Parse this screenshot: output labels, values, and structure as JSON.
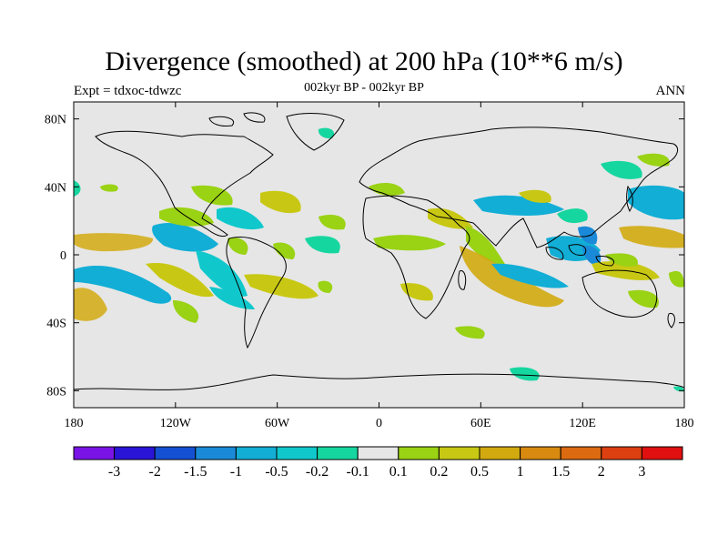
{
  "header": {
    "title": "Divergence (smoothed) at 200 hPa (10**6 m/s)",
    "experiment": "Expt = tdxoc-tdwzc",
    "subtitle": "002kyr BP - 002kyr BP",
    "season": "ANN"
  },
  "map": {
    "projection": "cylindrical-equidistant",
    "lon_range": [
      -180,
      180
    ],
    "lat_range": [
      -90,
      90
    ],
    "lat_ticks": [
      {
        "lat": 80,
        "label": "80N"
      },
      {
        "lat": 40,
        "label": "40N"
      },
      {
        "lat": 0,
        "label": "0"
      },
      {
        "lat": -40,
        "label": "40S"
      },
      {
        "lat": -80,
        "label": "80S"
      }
    ],
    "lon_ticks": [
      {
        "lon": -180,
        "label": "180"
      },
      {
        "lon": -120,
        "label": "120W"
      },
      {
        "lon": -60,
        "label": "60W"
      },
      {
        "lon": 0,
        "label": "0"
      },
      {
        "lon": 60,
        "label": "60E"
      },
      {
        "lon": 120,
        "label": "120E"
      },
      {
        "lon": 180,
        "label": "180"
      }
    ],
    "background_color": "#e6e6e6"
  },
  "colorbar": {
    "colors": [
      "#7a14e6",
      "#2a14d6",
      "#1450d2",
      "#1a8ad8",
      "#12aed6",
      "#10c8cc",
      "#16d6a0",
      "#e6e6e6",
      "#9ad214",
      "#c8c814",
      "#d2aa10",
      "#d88a10",
      "#dc6a10",
      "#dc4010",
      "#e01010"
    ],
    "labels": [
      "-3",
      "-2",
      "-1.5",
      "-1",
      "-0.5",
      "-0.2",
      "-0.1",
      "0.1",
      "0.2",
      "0.5",
      "1",
      "1.5",
      "2",
      "3"
    ]
  },
  "chart_data": {
    "type": "heatmap",
    "variable": "Divergence (smoothed) at 200 hPa",
    "units": "10**6 m/s",
    "anomaly_regions": [
      {
        "lon": -160,
        "lat": 8,
        "value": 0.5
      },
      {
        "lon": -150,
        "lat": -20,
        "value": -0.2
      },
      {
        "lon": -160,
        "lat": -28,
        "value": 0.5
      },
      {
        "lon": -120,
        "lat": 10,
        "value": -0.2
      },
      {
        "lon": -118,
        "lat": -18,
        "value": 0.2
      },
      {
        "lon": -95,
        "lat": 22,
        "value": 0.2
      },
      {
        "lon": -90,
        "lat": 8,
        "value": -0.2
      },
      {
        "lon": -60,
        "lat": 15,
        "value": 0.2
      },
      {
        "lon": -45,
        "lat": -20,
        "value": 0.2
      },
      {
        "lon": -30,
        "lat": 28,
        "value": 0.2
      },
      {
        "lon": -20,
        "lat": 8,
        "value": 0.2
      },
      {
        "lon": -15,
        "lat": -8,
        "value": -0.2
      },
      {
        "lon": 20,
        "lat": 10,
        "value": 0.2
      },
      {
        "lon": 45,
        "lat": 20,
        "value": 0.5
      },
      {
        "lon": 50,
        "lat": -15,
        "value": 0.5
      },
      {
        "lon": 60,
        "lat": 25,
        "value": -0.2
      },
      {
        "lon": 85,
        "lat": -12,
        "value": 0.5
      },
      {
        "lon": 95,
        "lat": 30,
        "value": 0.2
      },
      {
        "lon": 120,
        "lat": 15,
        "value": -0.2
      },
      {
        "lon": 130,
        "lat": 0,
        "value": -0.5
      },
      {
        "lon": 140,
        "lat": -12,
        "value": 0.2
      },
      {
        "lon": 165,
        "lat": 12,
        "value": 0.2
      },
      {
        "lon": 170,
        "lat": 30,
        "value": -0.2
      },
      {
        "lon": -20,
        "lat": 68,
        "value": -0.2
      },
      {
        "lon": 95,
        "lat": -60,
        "value": -0.2
      }
    ]
  }
}
